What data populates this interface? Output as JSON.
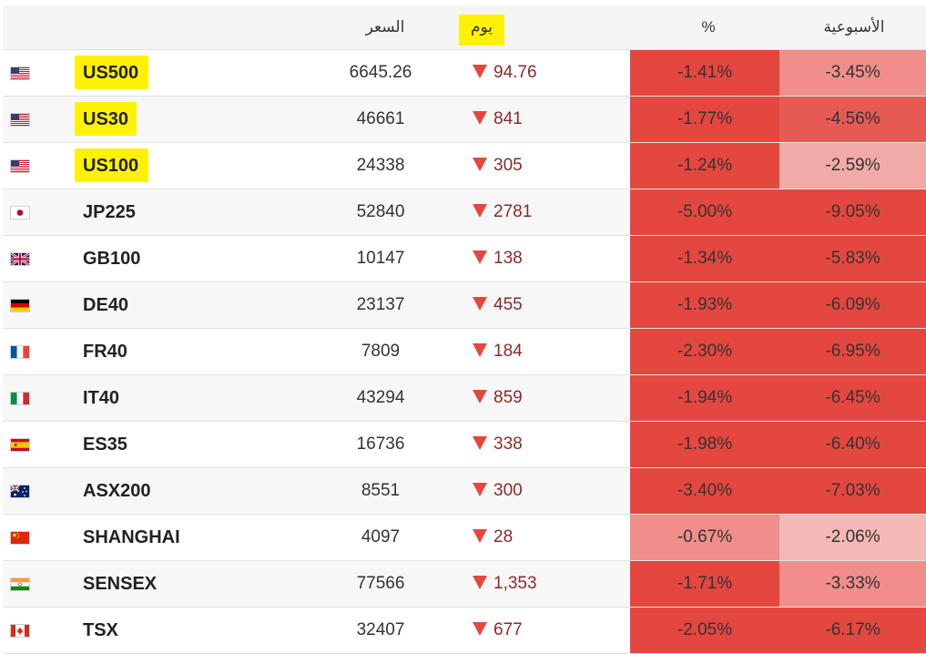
{
  "header": {
    "price_label": "السعر",
    "day_label": "يوم",
    "pct_label": "%",
    "week_label": "الأسبوعية"
  },
  "colors": {
    "highlight": "#fff200",
    "down_arrow": "#e4473f",
    "change_text": "#8b2a2a",
    "strong_red": "#e4473f",
    "medium_red": "#e75a54",
    "light_red": "#ef8e8a",
    "pale_red": "#f2aaa7",
    "palest_red": "#f4b8b6"
  },
  "rows": [
    {
      "flag": "us-flag",
      "name": "US500",
      "highlighted": true,
      "price": "6645.26",
      "change": "94.76",
      "pct": "-1.41%",
      "week": "-3.45%",
      "pct_color": "#e4473f",
      "week_color": "#ef8e8a"
    },
    {
      "flag": "us-flag",
      "name": "US30",
      "highlighted": true,
      "price": "46661",
      "change": "841",
      "pct": "-1.77%",
      "week": "-4.56%",
      "pct_color": "#e4473f",
      "week_color": "#e75a54"
    },
    {
      "flag": "us-flag",
      "name": "US100",
      "highlighted": true,
      "price": "24338",
      "change": "305",
      "pct": "-1.24%",
      "week": "-2.59%",
      "pct_color": "#e4473f",
      "week_color": "#f2aaa7"
    },
    {
      "flag": "jp-flag",
      "name": "JP225",
      "highlighted": false,
      "price": "52840",
      "change": "2781",
      "pct": "-5.00%",
      "week": "-9.05%",
      "pct_color": "#e4473f",
      "week_color": "#e4473f"
    },
    {
      "flag": "gb-flag",
      "name": "GB100",
      "highlighted": false,
      "price": "10147",
      "change": "138",
      "pct": "-1.34%",
      "week": "-5.83%",
      "pct_color": "#e4473f",
      "week_color": "#e4473f"
    },
    {
      "flag": "de-flag",
      "name": "DE40",
      "highlighted": false,
      "price": "23137",
      "change": "455",
      "pct": "-1.93%",
      "week": "-6.09%",
      "pct_color": "#e4473f",
      "week_color": "#e4473f"
    },
    {
      "flag": "fr-flag",
      "name": "FR40",
      "highlighted": false,
      "price": "7809",
      "change": "184",
      "pct": "-2.30%",
      "week": "-6.95%",
      "pct_color": "#e4473f",
      "week_color": "#e4473f"
    },
    {
      "flag": "it-flag",
      "name": "IT40",
      "highlighted": false,
      "price": "43294",
      "change": "859",
      "pct": "-1.94%",
      "week": "-6.45%",
      "pct_color": "#e4473f",
      "week_color": "#e4473f"
    },
    {
      "flag": "es-flag",
      "name": "ES35",
      "highlighted": false,
      "price": "16736",
      "change": "338",
      "pct": "-1.98%",
      "week": "-6.40%",
      "pct_color": "#e4473f",
      "week_color": "#e4473f"
    },
    {
      "flag": "au-flag",
      "name": "ASX200",
      "highlighted": false,
      "price": "8551",
      "change": "300",
      "pct": "-3.40%",
      "week": "-7.03%",
      "pct_color": "#e4473f",
      "week_color": "#e4473f"
    },
    {
      "flag": "cn-flag",
      "name": "SHANGHAI",
      "highlighted": false,
      "price": "4097",
      "change": "28",
      "pct": "-0.67%",
      "week": "-2.06%",
      "pct_color": "#ef8e8a",
      "week_color": "#f4b8b6"
    },
    {
      "flag": "in-flag",
      "name": "SENSEX",
      "highlighted": false,
      "price": "77566",
      "change": "1,353",
      "pct": "-1.71%",
      "week": "-3.33%",
      "pct_color": "#e4473f",
      "week_color": "#ef8e8a"
    },
    {
      "flag": "ca-flag",
      "name": "TSX",
      "highlighted": false,
      "price": "32407",
      "change": "677",
      "pct": "-2.05%",
      "week": "-6.17%",
      "pct_color": "#e4473f",
      "week_color": "#e4473f"
    }
  ]
}
